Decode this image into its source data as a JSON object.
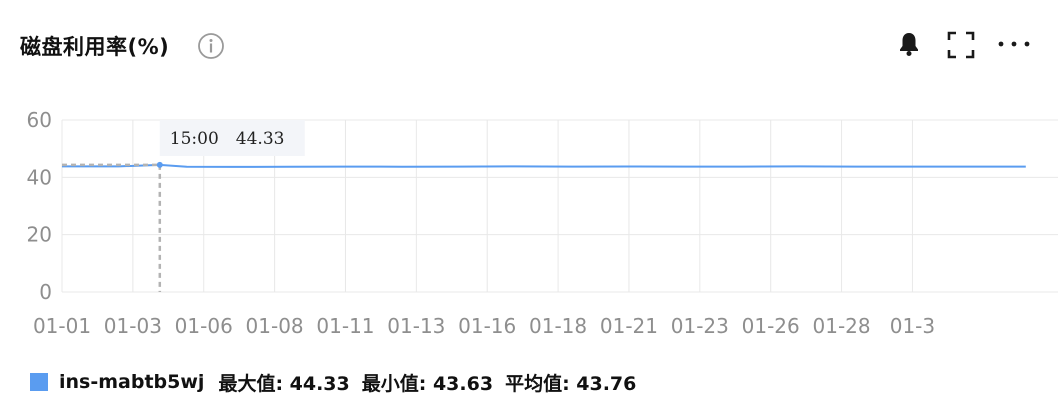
{
  "header": {
    "title": "磁盘利用率(%)",
    "info_icon": "info-icon",
    "bell_icon": "bell-icon",
    "fullscreen_icon": "fullscreen-icon",
    "more_icon": "more-icon"
  },
  "tooltip": {
    "time": "15:00",
    "value": "44.33"
  },
  "legend": {
    "series_name": "ins-mabtb5wj",
    "max_label": "最大值: 44.33",
    "min_label": "最小值: 43.63",
    "avg_label": "平均值: 43.76"
  },
  "colors": {
    "series": "#5a9cf0",
    "grid": "#e8e8e8",
    "tick": "#8e8e8e"
  },
  "chart_data": {
    "type": "line",
    "title": "磁盘利用率(%)",
    "xlabel": "",
    "ylabel": "",
    "ylim": [
      0,
      60
    ],
    "yticks": [
      0,
      20,
      40,
      60
    ],
    "x": [
      0,
      2,
      3.45,
      4.4,
      6,
      8,
      10,
      12,
      14,
      16,
      18,
      20,
      22,
      24,
      26,
      28,
      30,
      32,
      34
    ],
    "xlim": [
      0,
      34.5
    ],
    "xtick_positions": [
      0,
      2.5,
      5,
      7.5,
      10,
      12.5,
      15,
      17.5,
      20,
      22.5,
      25,
      27.5,
      30
    ],
    "xtick_labels": [
      "01-01",
      "01-03",
      "01-06",
      "01-08",
      "01-11",
      "01-13",
      "01-16",
      "01-18",
      "01-21",
      "01-23",
      "01-26",
      "01-28",
      "01-3"
    ],
    "series": [
      {
        "name": "ins-mabtb5wj",
        "values": [
          43.8,
          43.8,
          44.33,
          43.7,
          43.65,
          43.7,
          43.75,
          43.7,
          43.75,
          43.8,
          43.75,
          43.78,
          43.76,
          43.75,
          43.8,
          43.75,
          43.76,
          43.75,
          43.76
        ]
      }
    ],
    "crosshair_x": 3.45,
    "legend_position": "bottom-left",
    "grid": true
  }
}
